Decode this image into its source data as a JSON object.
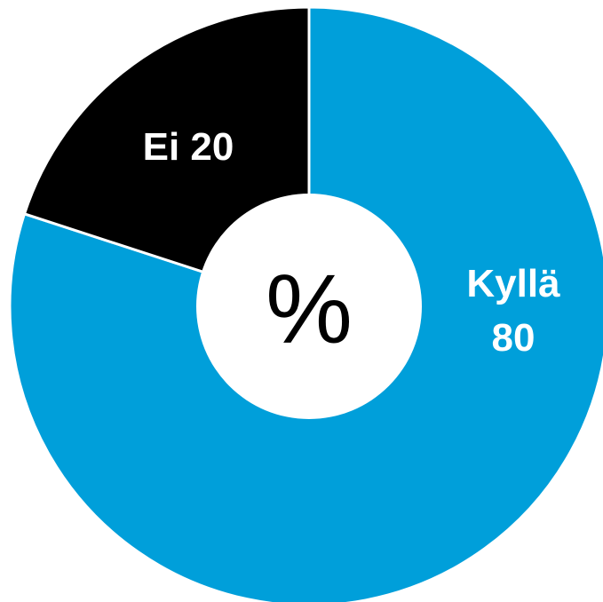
{
  "chart_data": {
    "type": "pie",
    "style": "donut",
    "center_label": "%",
    "slices": [
      {
        "label": "Kyllä",
        "value": 80,
        "value_text": "80",
        "color": "#009FDA",
        "label_color": "#FFFFFF"
      },
      {
        "label": "Ei",
        "value": 20,
        "value_text": "20",
        "color": "#000000",
        "label_color": "#FFFFFF"
      }
    ],
    "separator_color": "#FFFFFF"
  }
}
